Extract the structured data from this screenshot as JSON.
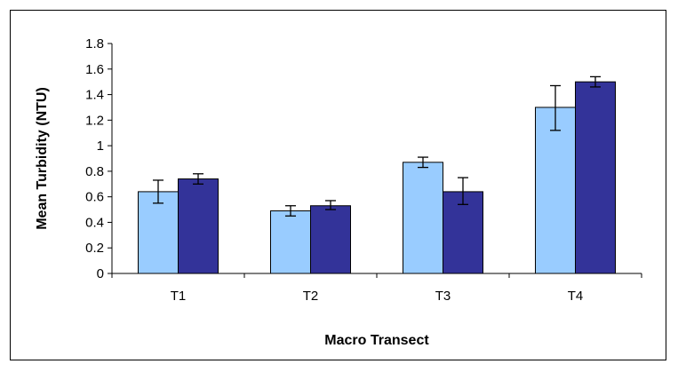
{
  "chart_data": {
    "type": "bar",
    "title": "",
    "xlabel": "Macro Transect",
    "ylabel": "Mean Turbidity (NTU)",
    "categories": [
      "T1",
      "T2",
      "T3",
      "T4"
    ],
    "ylim": [
      0,
      1.8
    ],
    "yticks": [
      "0",
      "0.2",
      "0.4",
      "0.6",
      "0.8",
      "1",
      "1.2",
      "1.4",
      "1.6",
      "1.8"
    ],
    "grid": false,
    "legend": "none",
    "series": [
      {
        "color": "#99CCFF",
        "values": [
          0.64,
          0.49,
          0.87,
          1.3
        ],
        "error_low": [
          0.55,
          0.45,
          0.83,
          1.12
        ],
        "error_high": [
          0.73,
          0.53,
          0.91,
          1.47
        ]
      },
      {
        "color": "#333399",
        "values": [
          0.74,
          0.53,
          0.64,
          1.5
        ],
        "error_low": [
          0.7,
          0.5,
          0.54,
          1.46
        ],
        "error_high": [
          0.78,
          0.57,
          0.75,
          1.54
        ]
      }
    ]
  }
}
